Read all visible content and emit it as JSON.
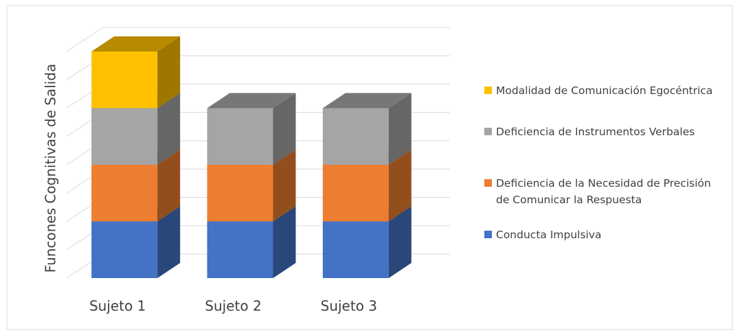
{
  "chart_data": {
    "type": "bar3d_stacked",
    "y_label": "Funcones Cognitivas  de Salida",
    "categories": [
      "Sujeto 1",
      "Sujeto 2",
      "Sujeto 3"
    ],
    "series": [
      {
        "name": "Conducta Impulsiva",
        "color": "#4472c4",
        "values": [
          1,
          1,
          1
        ]
      },
      {
        "name": "Deficiencia de la Necesidad de Precisión de Comunicar la Respuesta",
        "color": "#ed7d31",
        "values": [
          1,
          1,
          1
        ]
      },
      {
        "name": "Deficiencia de Instrumentos Verbales",
        "color": "#a5a5a5",
        "values": [
          1,
          1,
          1
        ]
      },
      {
        "name": "Modalidad de Comunicación Egocéntrica",
        "color": "#ffc000",
        "values": [
          1,
          0,
          0
        ]
      }
    ],
    "ylim": [
      0,
      4
    ],
    "yticks": [
      0,
      0.5,
      1,
      1.5,
      2,
      2.5,
      3,
      3.5,
      4
    ],
    "grid": true,
    "legend": "right"
  }
}
